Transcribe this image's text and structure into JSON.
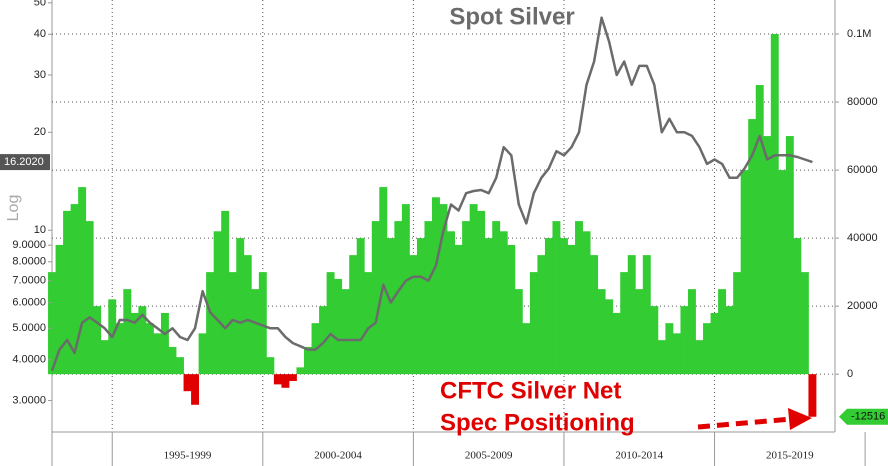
{
  "chart_data": {
    "type": "line_bar",
    "title": "Spot Silver",
    "ylabel": "Log",
    "log_y": true,
    "annotation_lines": [
      "CFTC Silver Net",
      "Spec Positioning"
    ],
    "xlim": [
      1993,
      2019
    ],
    "xticks": [
      1995,
      2000,
      2005,
      2010,
      2015,
      2020
    ],
    "x_period_labels": [
      "1995-1999",
      "2000-2004",
      "2005-2009",
      "2010-2014",
      "2015-2019"
    ],
    "ylim": [
      2.4,
      51
    ],
    "yticks": [
      {
        "value": 3,
        "label": "3.0000"
      },
      {
        "value": 4,
        "label": "4.0000"
      },
      {
        "value": 5,
        "label": "5.0000"
      },
      {
        "value": 6,
        "label": "6.0000"
      },
      {
        "value": 7,
        "label": "7.0000"
      },
      {
        "value": 8,
        "label": "8.0000"
      },
      {
        "value": 9,
        "label": "9.0000"
      },
      10,
      20,
      30,
      40,
      50
    ],
    "y2lim": [
      -17000,
      110000
    ],
    "y2ticks": [
      0,
      20000,
      40000,
      60000,
      80000,
      {
        "value": 100000,
        "label": "0.1M"
      }
    ],
    "grid": true,
    "x": [
      1993.0,
      1993.25,
      1993.5,
      1993.75,
      1994.0,
      1994.25,
      1994.5,
      1994.75,
      1995.0,
      1995.25,
      1995.5,
      1995.75,
      1996.0,
      1996.25,
      1996.5,
      1996.75,
      1997.0,
      1997.25,
      1997.5,
      1997.75,
      1998.0,
      1998.25,
      1998.5,
      1998.75,
      1999.0,
      1999.25,
      1999.5,
      1999.75,
      2000.0,
      2000.25,
      2000.5,
      2000.75,
      2001.0,
      2001.25,
      2001.5,
      2001.75,
      2002.0,
      2002.25,
      2002.5,
      2002.75,
      2003.0,
      2003.25,
      2003.5,
      2003.75,
      2004.0,
      2004.25,
      2004.5,
      2004.75,
      2005.0,
      2005.25,
      2005.5,
      2005.75,
      2006.0,
      2006.25,
      2006.5,
      2006.75,
      2007.0,
      2007.25,
      2007.5,
      2007.75,
      2008.0,
      2008.25,
      2008.5,
      2008.75,
      2009.0,
      2009.25,
      2009.5,
      2009.75,
      2010.0,
      2010.25,
      2010.5,
      2010.75,
      2011.0,
      2011.25,
      2011.5,
      2011.75,
      2012.0,
      2012.25,
      2012.5,
      2012.75,
      2013.0,
      2013.25,
      2013.5,
      2013.75,
      2014.0,
      2014.25,
      2014.5,
      2014.75,
      2015.0,
      2015.25,
      2015.5,
      2015.75,
      2016.0,
      2016.25,
      2016.5,
      2016.75,
      2017.0,
      2017.25,
      2017.5,
      2017.75,
      2018.0,
      2018.25
    ],
    "series": [
      {
        "name": "Spot Silver",
        "color": "#6b6b6b",
        "last_value_label": "16.2020",
        "values": [
          3.7,
          4.3,
          4.6,
          4.2,
          5.2,
          5.4,
          5.2,
          5.0,
          4.7,
          5.3,
          5.3,
          5.2,
          5.5,
          5.2,
          5.0,
          4.8,
          5.0,
          4.7,
          4.6,
          5.0,
          6.5,
          5.6,
          5.3,
          5.0,
          5.3,
          5.2,
          5.3,
          5.2,
          5.1,
          5.0,
          5.0,
          4.7,
          4.5,
          4.4,
          4.3,
          4.3,
          4.5,
          4.8,
          4.6,
          4.6,
          4.6,
          4.6,
          5.0,
          5.2,
          6.8,
          6.0,
          6.5,
          7.0,
          7.2,
          7.2,
          7.0,
          7.8,
          10.0,
          12.0,
          11.5,
          13.0,
          13.2,
          13.3,
          13.0,
          14.5,
          18.0,
          17.0,
          12.0,
          10.5,
          13.0,
          14.5,
          15.5,
          17.5,
          17.0,
          18.0,
          20.0,
          28.0,
          33.0,
          45.0,
          38.0,
          30.0,
          33.0,
          28.0,
          32.0,
          32.0,
          28.0,
          20.0,
          22.0,
          20.0,
          20.0,
          19.5,
          18.0,
          16.0,
          16.5,
          16.0,
          14.5,
          14.5,
          15.5,
          17.0,
          19.5,
          16.5,
          17.0,
          17.0,
          17.0,
          16.8,
          16.5,
          16.2
        ]
      },
      {
        "name": "CFTC Silver Net Spec Positioning",
        "color": "#33cc33",
        "negative_color": "#e00000",
        "axis": "y2",
        "values": [
          30000,
          38000,
          48000,
          50000,
          55000,
          45000,
          20000,
          10000,
          22000,
          15000,
          25000,
          18000,
          20000,
          15000,
          12000,
          18000,
          8000,
          5000,
          -5000,
          -9000,
          12000,
          30000,
          42000,
          48000,
          30000,
          40000,
          35000,
          25000,
          30000,
          5000,
          -3000,
          -4000,
          -2000,
          2000,
          8000,
          15000,
          20000,
          30000,
          28000,
          25000,
          35000,
          40000,
          30000,
          45000,
          55000,
          40000,
          45000,
          50000,
          35000,
          40000,
          45000,
          52000,
          50000,
          42000,
          38000,
          45000,
          50000,
          48000,
          40000,
          45000,
          42000,
          38000,
          25000,
          15000,
          30000,
          35000,
          40000,
          45000,
          40000,
          38000,
          45000,
          42000,
          35000,
          25000,
          22000,
          18000,
          30000,
          35000,
          25000,
          35000,
          20000,
          10000,
          15000,
          12000,
          20000,
          25000,
          10000,
          15000,
          18000,
          25000,
          20000,
          30000,
          60000,
          75000,
          85000,
          70000,
          100000,
          60000,
          70000,
          40000,
          30000,
          -12516
        ]
      }
    ]
  }
}
